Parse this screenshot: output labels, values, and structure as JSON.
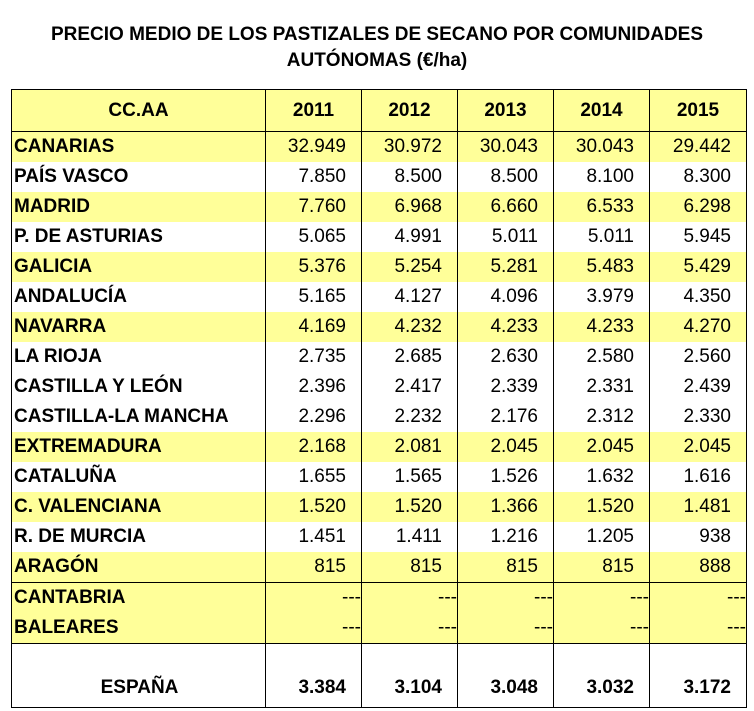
{
  "title": {
    "line1": "PRECIO MEDIO DE LOS PASTIZALES DE SECANO POR COMUNIDADES",
    "line2": "AUTÓNOMAS (€/ha)"
  },
  "header": [
    "CC.AA",
    "2011",
    "2012",
    "2013",
    "2014",
    "2015"
  ],
  "rows": [
    {
      "name": "CANARIAS",
      "values": [
        "32.949",
        "30.972",
        "30.043",
        "30.043",
        "29.442"
      ]
    },
    {
      "name": "PAÍS VASCO",
      "values": [
        "7.850",
        "8.500",
        "8.500",
        "8.100",
        "8.300"
      ]
    },
    {
      "name": "MADRID",
      "values": [
        "7.760",
        "6.968",
        "6.660",
        "6.533",
        "6.298"
      ]
    },
    {
      "name": "P. DE ASTURIAS",
      "values": [
        "5.065",
        "4.991",
        "5.011",
        "5.011",
        "5.945"
      ]
    },
    {
      "name": "GALICIA",
      "values": [
        "5.376",
        "5.254",
        "5.281",
        "5.483",
        "5.429"
      ]
    },
    {
      "name": "ANDALUCÍA",
      "values": [
        "5.165",
        "4.127",
        "4.096",
        "3.979",
        "4.350"
      ]
    },
    {
      "name": "NAVARRA",
      "values": [
        "4.169",
        "4.232",
        "4.233",
        "4.233",
        "4.270"
      ]
    },
    {
      "name": "LA RIOJA",
      "values": [
        "2.735",
        "2.685",
        "2.630",
        "2.580",
        "2.560"
      ]
    },
    {
      "name": "CASTILLA Y LEÓN",
      "values": [
        "2.396",
        "2.417",
        "2.339",
        "2.331",
        "2.439"
      ]
    },
    {
      "name": "CASTILLA-LA MANCHA",
      "values": [
        "2.296",
        "2.232",
        "2.176",
        "2.312",
        "2.330"
      ]
    },
    {
      "name": "EXTREMADURA",
      "values": [
        "2.168",
        "2.081",
        "2.045",
        "2.045",
        "2.045"
      ]
    },
    {
      "name": "CATALUÑA",
      "values": [
        "1.655",
        "1.565",
        "1.526",
        "1.632",
        "1.616"
      ]
    },
    {
      "name": "C. VALENCIANA",
      "values": [
        "1.520",
        "1.520",
        "1.366",
        "1.520",
        "1.481"
      ]
    },
    {
      "name": "R. DE MURCIA",
      "values": [
        "1.451",
        "1.411",
        "1.216",
        "1.205",
        "938"
      ]
    },
    {
      "name": "ARAGÓN",
      "values": [
        "815",
        "815",
        "815",
        "815",
        "888"
      ]
    },
    {
      "name": "CANTABRIA",
      "values": [
        "---",
        "---",
        "---",
        "---",
        "---"
      ]
    },
    {
      "name": "BALEARES",
      "values": [
        "---",
        "---",
        "---",
        "---",
        "---"
      ]
    }
  ],
  "total": {
    "name": "ESPAÑA",
    "values": [
      "3.384",
      "3.104",
      "3.048",
      "3.032",
      "3.172"
    ]
  },
  "colors": {
    "highlight": "#ffff99",
    "border": "#000000"
  }
}
